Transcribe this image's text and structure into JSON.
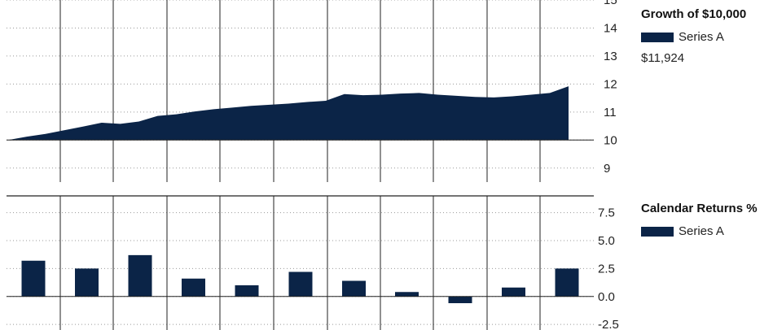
{
  "colors": {
    "series": "#0b2447",
    "grid": "#999999",
    "divider": "#222222"
  },
  "chart_data": [
    {
      "type": "area",
      "title": "Growth of $10,000",
      "series": [
        {
          "name": "Series A",
          "values": [
            10.0,
            10.12,
            10.22,
            10.35,
            10.48,
            10.62,
            10.58,
            10.66,
            10.86,
            10.92,
            11.02,
            11.1,
            11.16,
            11.22,
            11.26,
            11.3,
            11.36,
            11.4,
            11.64,
            11.6,
            11.62,
            11.66,
            11.68,
            11.62,
            11.58,
            11.54,
            11.52,
            11.56,
            11.62,
            11.68,
            11.92
          ]
        }
      ],
      "ylim": [
        8.5,
        15
      ],
      "yticks": [
        "15",
        "14",
        "13",
        "12",
        "11",
        "10",
        "9"
      ],
      "ytick_values": [
        15,
        14,
        13,
        12,
        11,
        10,
        9
      ],
      "ending_value": "$11,924"
    },
    {
      "type": "bar",
      "title": "Calendar Returns %",
      "series": [
        {
          "name": "Series A",
          "values": [
            3.2,
            2.5,
            3.7,
            1.6,
            1.0,
            2.2,
            1.4,
            0.4,
            -0.6,
            0.8,
            2.5
          ]
        }
      ],
      "ylim": [
        -3,
        9
      ],
      "yticks": [
        "7.5",
        "5.0",
        "2.5",
        "0.0",
        "-2.5"
      ],
      "ytick_values": [
        7.5,
        5.0,
        2.5,
        0.0,
        -2.5
      ]
    }
  ]
}
